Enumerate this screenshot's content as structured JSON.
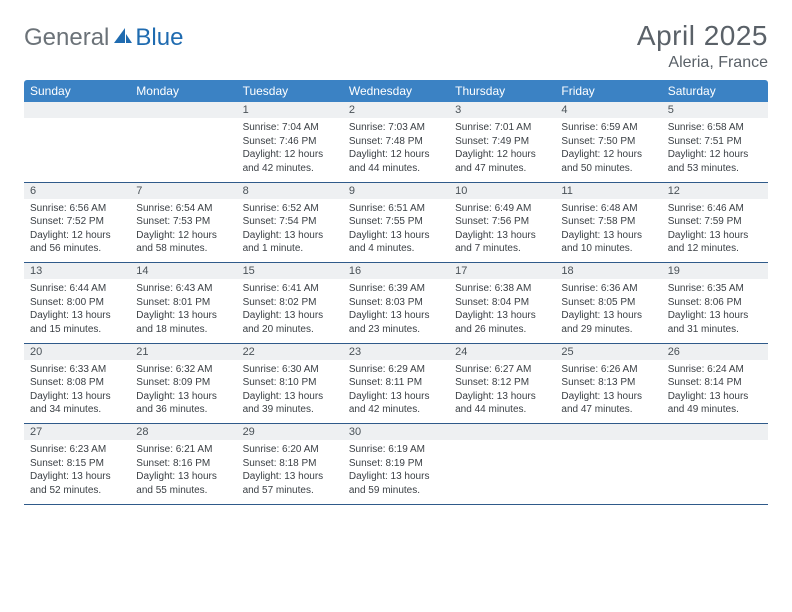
{
  "brand": {
    "part1": "General",
    "part2": "Blue"
  },
  "title": "April 2025",
  "location": "Aleria, France",
  "colors": {
    "header_bg": "#3b82c4",
    "header_text": "#ffffff",
    "daynum_bg": "#eef0f2",
    "text": "#3a3f44",
    "title_text": "#5a6168",
    "rule": "#2f5a8a"
  },
  "weekdays": [
    "Sunday",
    "Monday",
    "Tuesday",
    "Wednesday",
    "Thursday",
    "Friday",
    "Saturday"
  ],
  "weeks": [
    [
      null,
      null,
      {
        "n": "1",
        "sr": "Sunrise: 7:04 AM",
        "ss": "Sunset: 7:46 PM",
        "dl": "Daylight: 12 hours and 42 minutes."
      },
      {
        "n": "2",
        "sr": "Sunrise: 7:03 AM",
        "ss": "Sunset: 7:48 PM",
        "dl": "Daylight: 12 hours and 44 minutes."
      },
      {
        "n": "3",
        "sr": "Sunrise: 7:01 AM",
        "ss": "Sunset: 7:49 PM",
        "dl": "Daylight: 12 hours and 47 minutes."
      },
      {
        "n": "4",
        "sr": "Sunrise: 6:59 AM",
        "ss": "Sunset: 7:50 PM",
        "dl": "Daylight: 12 hours and 50 minutes."
      },
      {
        "n": "5",
        "sr": "Sunrise: 6:58 AM",
        "ss": "Sunset: 7:51 PM",
        "dl": "Daylight: 12 hours and 53 minutes."
      }
    ],
    [
      {
        "n": "6",
        "sr": "Sunrise: 6:56 AM",
        "ss": "Sunset: 7:52 PM",
        "dl": "Daylight: 12 hours and 56 minutes."
      },
      {
        "n": "7",
        "sr": "Sunrise: 6:54 AM",
        "ss": "Sunset: 7:53 PM",
        "dl": "Daylight: 12 hours and 58 minutes."
      },
      {
        "n": "8",
        "sr": "Sunrise: 6:52 AM",
        "ss": "Sunset: 7:54 PM",
        "dl": "Daylight: 13 hours and 1 minute."
      },
      {
        "n": "9",
        "sr": "Sunrise: 6:51 AM",
        "ss": "Sunset: 7:55 PM",
        "dl": "Daylight: 13 hours and 4 minutes."
      },
      {
        "n": "10",
        "sr": "Sunrise: 6:49 AM",
        "ss": "Sunset: 7:56 PM",
        "dl": "Daylight: 13 hours and 7 minutes."
      },
      {
        "n": "11",
        "sr": "Sunrise: 6:48 AM",
        "ss": "Sunset: 7:58 PM",
        "dl": "Daylight: 13 hours and 10 minutes."
      },
      {
        "n": "12",
        "sr": "Sunrise: 6:46 AM",
        "ss": "Sunset: 7:59 PM",
        "dl": "Daylight: 13 hours and 12 minutes."
      }
    ],
    [
      {
        "n": "13",
        "sr": "Sunrise: 6:44 AM",
        "ss": "Sunset: 8:00 PM",
        "dl": "Daylight: 13 hours and 15 minutes."
      },
      {
        "n": "14",
        "sr": "Sunrise: 6:43 AM",
        "ss": "Sunset: 8:01 PM",
        "dl": "Daylight: 13 hours and 18 minutes."
      },
      {
        "n": "15",
        "sr": "Sunrise: 6:41 AM",
        "ss": "Sunset: 8:02 PM",
        "dl": "Daylight: 13 hours and 20 minutes."
      },
      {
        "n": "16",
        "sr": "Sunrise: 6:39 AM",
        "ss": "Sunset: 8:03 PM",
        "dl": "Daylight: 13 hours and 23 minutes."
      },
      {
        "n": "17",
        "sr": "Sunrise: 6:38 AM",
        "ss": "Sunset: 8:04 PM",
        "dl": "Daylight: 13 hours and 26 minutes."
      },
      {
        "n": "18",
        "sr": "Sunrise: 6:36 AM",
        "ss": "Sunset: 8:05 PM",
        "dl": "Daylight: 13 hours and 29 minutes."
      },
      {
        "n": "19",
        "sr": "Sunrise: 6:35 AM",
        "ss": "Sunset: 8:06 PM",
        "dl": "Daylight: 13 hours and 31 minutes."
      }
    ],
    [
      {
        "n": "20",
        "sr": "Sunrise: 6:33 AM",
        "ss": "Sunset: 8:08 PM",
        "dl": "Daylight: 13 hours and 34 minutes."
      },
      {
        "n": "21",
        "sr": "Sunrise: 6:32 AM",
        "ss": "Sunset: 8:09 PM",
        "dl": "Daylight: 13 hours and 36 minutes."
      },
      {
        "n": "22",
        "sr": "Sunrise: 6:30 AM",
        "ss": "Sunset: 8:10 PM",
        "dl": "Daylight: 13 hours and 39 minutes."
      },
      {
        "n": "23",
        "sr": "Sunrise: 6:29 AM",
        "ss": "Sunset: 8:11 PM",
        "dl": "Daylight: 13 hours and 42 minutes."
      },
      {
        "n": "24",
        "sr": "Sunrise: 6:27 AM",
        "ss": "Sunset: 8:12 PM",
        "dl": "Daylight: 13 hours and 44 minutes."
      },
      {
        "n": "25",
        "sr": "Sunrise: 6:26 AM",
        "ss": "Sunset: 8:13 PM",
        "dl": "Daylight: 13 hours and 47 minutes."
      },
      {
        "n": "26",
        "sr": "Sunrise: 6:24 AM",
        "ss": "Sunset: 8:14 PM",
        "dl": "Daylight: 13 hours and 49 minutes."
      }
    ],
    [
      {
        "n": "27",
        "sr": "Sunrise: 6:23 AM",
        "ss": "Sunset: 8:15 PM",
        "dl": "Daylight: 13 hours and 52 minutes."
      },
      {
        "n": "28",
        "sr": "Sunrise: 6:21 AM",
        "ss": "Sunset: 8:16 PM",
        "dl": "Daylight: 13 hours and 55 minutes."
      },
      {
        "n": "29",
        "sr": "Sunrise: 6:20 AM",
        "ss": "Sunset: 8:18 PM",
        "dl": "Daylight: 13 hours and 57 minutes."
      },
      {
        "n": "30",
        "sr": "Sunrise: 6:19 AM",
        "ss": "Sunset: 8:19 PM",
        "dl": "Daylight: 13 hours and 59 minutes."
      },
      null,
      null,
      null
    ]
  ]
}
